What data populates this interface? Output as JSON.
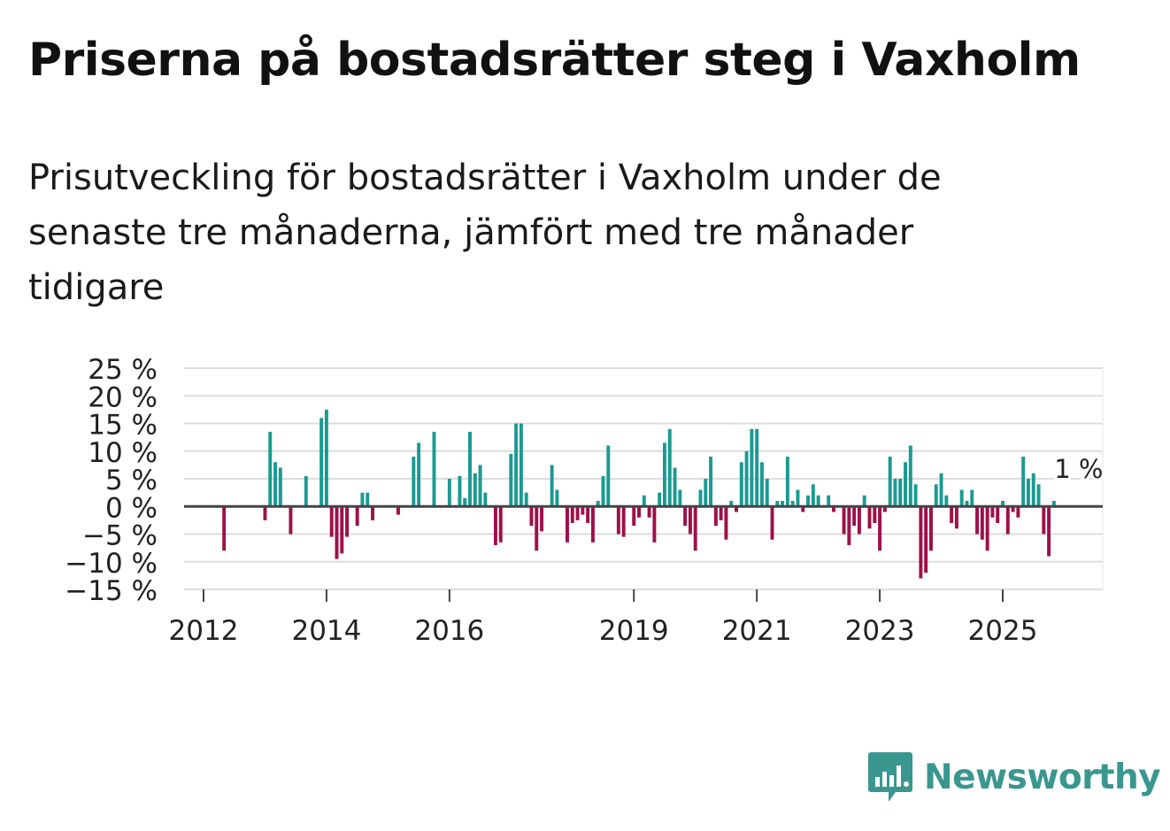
{
  "title": "Priserna på bostadsrätter steg i Vaxholm",
  "subtitle": "Prisutveckling för bostadsrätter i Vaxholm under de senaste tre månaderna, jämfört med tre månader tidigare",
  "brand": {
    "name": "Newsworthy",
    "color": "#3a9790"
  },
  "colors": {
    "positive": "#1a9a92",
    "negative": "#9e1048",
    "zero_line": "#444444",
    "grid": "#dddddd"
  },
  "chart_data": {
    "type": "bar",
    "title": "Priserna på bostadsrätter steg i Vaxholm",
    "xlabel": "",
    "ylabel": "",
    "ylim": [
      -15,
      25
    ],
    "y_ticks": [
      25,
      20,
      15,
      10,
      5,
      0,
      -5,
      -10,
      -15
    ],
    "y_tick_labels": [
      "25 %",
      "20 %",
      "15 %",
      "10 %",
      "5 %",
      "0 %",
      "−5 %",
      "−10 %",
      "−15 %"
    ],
    "x_ticks": [
      {
        "year": 2012,
        "label": "2012"
      },
      {
        "year": 2014,
        "label": "2014"
      },
      {
        "year": 2016,
        "label": "2016"
      },
      {
        "year": 2019,
        "label": "2019"
      },
      {
        "year": 2021,
        "label": "2021"
      },
      {
        "year": 2023,
        "label": "2023"
      },
      {
        "year": 2025,
        "label": "2025"
      }
    ],
    "last_value_label": "1 %",
    "series": [
      {
        "name": "Prisutveckling",
        "points": [
          [
            "2012-05",
            -8
          ],
          [
            "2013-01",
            -2.5
          ],
          [
            "2013-02",
            13.5
          ],
          [
            "2013-03",
            8
          ],
          [
            "2013-04",
            7
          ],
          [
            "2013-06",
            -5
          ],
          [
            "2013-09",
            5.5
          ],
          [
            "2013-12",
            16
          ],
          [
            "2014-01",
            17.5
          ],
          [
            "2014-02",
            -5.5
          ],
          [
            "2014-03",
            -9.5
          ],
          [
            "2014-04",
            -8.5
          ],
          [
            "2014-05",
            -5.5
          ],
          [
            "2014-07",
            -3.5
          ],
          [
            "2014-08",
            2.5
          ],
          [
            "2014-09",
            2.5
          ],
          [
            "2014-10",
            -2.5
          ],
          [
            "2015-03",
            -1.5
          ],
          [
            "2015-06",
            9
          ],
          [
            "2015-07",
            11.5
          ],
          [
            "2015-10",
            13.5
          ],
          [
            "2016-01",
            5
          ],
          [
            "2016-03",
            5.5
          ],
          [
            "2016-04",
            1.5
          ],
          [
            "2016-05",
            13.5
          ],
          [
            "2016-06",
            6
          ],
          [
            "2016-07",
            7.5
          ],
          [
            "2016-08",
            2.5
          ],
          [
            "2016-10",
            -7
          ],
          [
            "2016-11",
            -6.5
          ],
          [
            "2017-01",
            9.5
          ],
          [
            "2017-02",
            15
          ],
          [
            "2017-03",
            15
          ],
          [
            "2017-04",
            2.5
          ],
          [
            "2017-05",
            -3.5
          ],
          [
            "2017-06",
            -8
          ],
          [
            "2017-07",
            -4.5
          ],
          [
            "2017-09",
            7.5
          ],
          [
            "2017-10",
            3
          ],
          [
            "2017-12",
            -6.5
          ],
          [
            "2018-01",
            -3
          ],
          [
            "2018-02",
            -2.5
          ],
          [
            "2018-03",
            -1.5
          ],
          [
            "2018-04",
            -3
          ],
          [
            "2018-05",
            -6.5
          ],
          [
            "2018-06",
            1
          ],
          [
            "2018-07",
            5.5
          ],
          [
            "2018-08",
            11
          ],
          [
            "2018-10",
            -5
          ],
          [
            "2018-11",
            -5.5
          ],
          [
            "2019-01",
            -3.5
          ],
          [
            "2019-02",
            -2
          ],
          [
            "2019-03",
            2
          ],
          [
            "2019-04",
            -2
          ],
          [
            "2019-05",
            -6.5
          ],
          [
            "2019-06",
            2.5
          ],
          [
            "2019-07",
            11.5
          ],
          [
            "2019-08",
            14
          ],
          [
            "2019-09",
            7
          ],
          [
            "2019-10",
            3
          ],
          [
            "2019-11",
            -3.5
          ],
          [
            "2019-12",
            -5
          ],
          [
            "2020-01",
            -8
          ],
          [
            "2020-02",
            3
          ],
          [
            "2020-03",
            5
          ],
          [
            "2020-04",
            9
          ],
          [
            "2020-05",
            -3.5
          ],
          [
            "2020-06",
            -2.5
          ],
          [
            "2020-07",
            -6
          ],
          [
            "2020-08",
            1
          ],
          [
            "2020-09",
            -1
          ],
          [
            "2020-10",
            8
          ],
          [
            "2020-11",
            10
          ],
          [
            "2020-12",
            14
          ],
          [
            "2021-01",
            14
          ],
          [
            "2021-02",
            8
          ],
          [
            "2021-03",
            5
          ],
          [
            "2021-04",
            -6
          ],
          [
            "2021-05",
            1
          ],
          [
            "2021-06",
            1
          ],
          [
            "2021-07",
            9
          ],
          [
            "2021-08",
            1
          ],
          [
            "2021-09",
            3
          ],
          [
            "2021-10",
            -1
          ],
          [
            "2021-11",
            2
          ],
          [
            "2021-12",
            4
          ],
          [
            "2022-01",
            2
          ],
          [
            "2022-03",
            2
          ],
          [
            "2022-04",
            -1
          ],
          [
            "2022-06",
            -5
          ],
          [
            "2022-07",
            -7
          ],
          [
            "2022-08",
            -3.5
          ],
          [
            "2022-09",
            -5
          ],
          [
            "2022-10",
            2
          ],
          [
            "2022-11",
            -4
          ],
          [
            "2022-12",
            -3
          ],
          [
            "2023-01",
            -8
          ],
          [
            "2023-02",
            -1
          ],
          [
            "2023-03",
            9
          ],
          [
            "2023-04",
            5
          ],
          [
            "2023-05",
            5
          ],
          [
            "2023-06",
            8
          ],
          [
            "2023-07",
            11
          ],
          [
            "2023-08",
            4
          ],
          [
            "2023-09",
            -13
          ],
          [
            "2023-10",
            -12
          ],
          [
            "2023-11",
            -8
          ],
          [
            "2023-12",
            4
          ],
          [
            "2024-01",
            6
          ],
          [
            "2024-02",
            2
          ],
          [
            "2024-03",
            -3
          ],
          [
            "2024-04",
            -4
          ],
          [
            "2024-05",
            3
          ],
          [
            "2024-06",
            1
          ],
          [
            "2024-07",
            3
          ],
          [
            "2024-08",
            -5
          ],
          [
            "2024-09",
            -6
          ],
          [
            "2024-10",
            -8
          ],
          [
            "2024-11",
            -2
          ],
          [
            "2024-12",
            -3
          ],
          [
            "2025-01",
            1
          ],
          [
            "2025-02",
            -5
          ],
          [
            "2025-03",
            -1
          ],
          [
            "2025-04",
            -2
          ],
          [
            "2025-05",
            9
          ],
          [
            "2025-06",
            5
          ],
          [
            "2025-07",
            6
          ],
          [
            "2025-08",
            4
          ],
          [
            "2025-09",
            -5
          ],
          [
            "2025-10",
            -9
          ],
          [
            "2025-11",
            1
          ]
        ]
      }
    ]
  }
}
